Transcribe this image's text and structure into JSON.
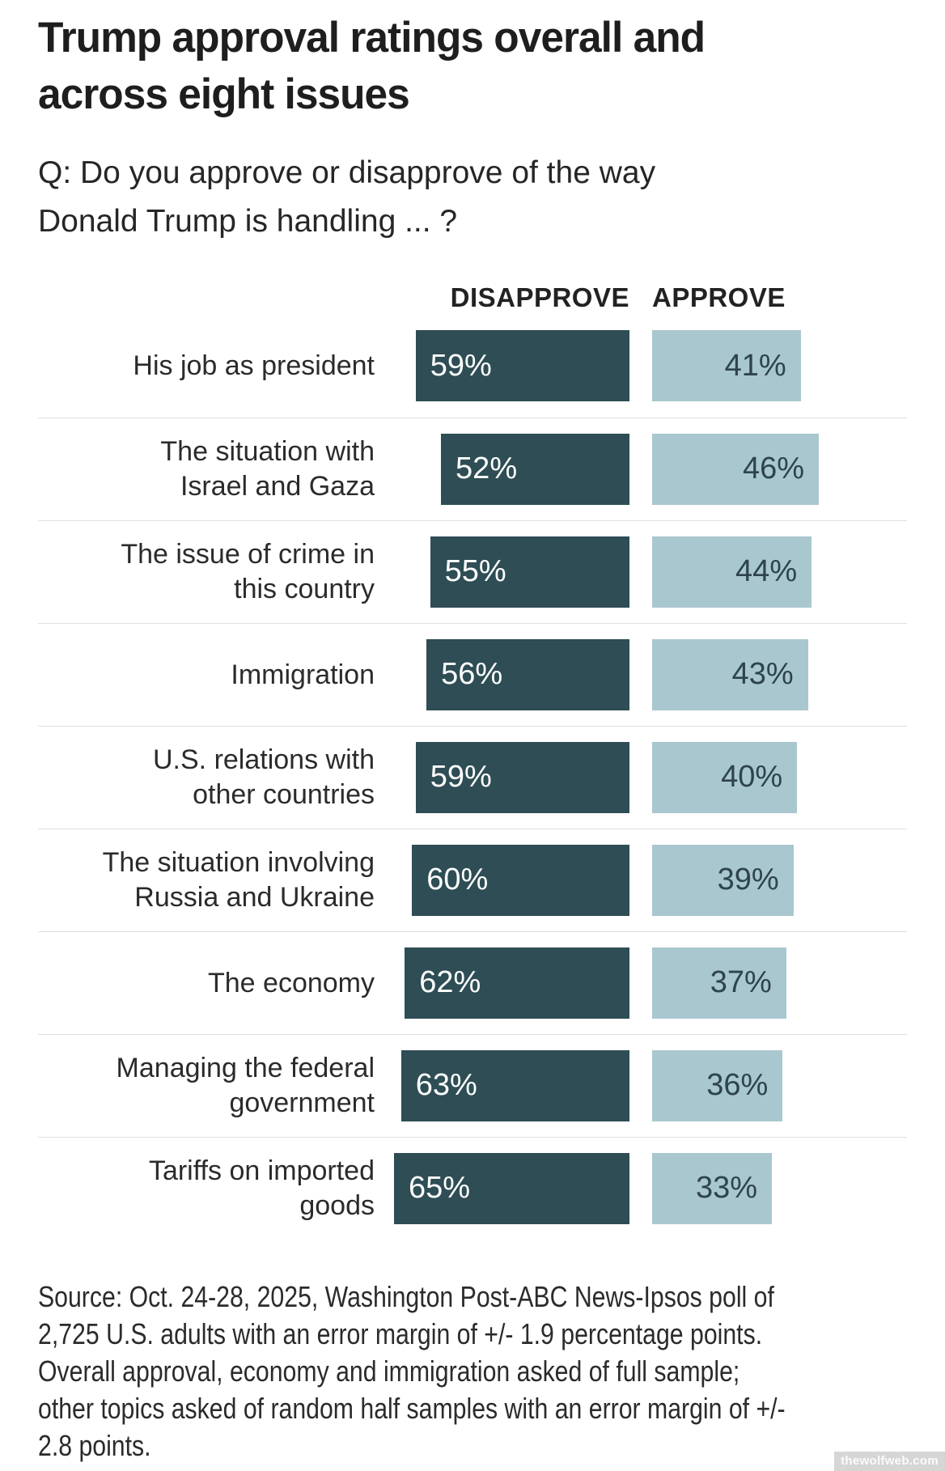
{
  "title_lines": [
    "Trump approval ratings overall and",
    "across eight issues"
  ],
  "question_lines": [
    "Q: Do you approve or disapprove of the way",
    "Donald Trump is handling ... ?"
  ],
  "columns": {
    "disapprove": "DISAPPROVE",
    "approve": "APPROVE"
  },
  "rows": [
    {
      "label_lines": [
        "His job as president"
      ],
      "disapprove": {
        "value": 59,
        "label": "59%"
      },
      "approve": {
        "value": 41,
        "label": "41%"
      }
    },
    {
      "label_lines": [
        "The situation with",
        "Israel and Gaza"
      ],
      "disapprove": {
        "value": 52,
        "label": "52%"
      },
      "approve": {
        "value": 46,
        "label": "46%"
      }
    },
    {
      "label_lines": [
        "The issue of crime in",
        "this country"
      ],
      "disapprove": {
        "value": 55,
        "label": "55%"
      },
      "approve": {
        "value": 44,
        "label": "44%"
      }
    },
    {
      "label_lines": [
        "Immigration"
      ],
      "disapprove": {
        "value": 56,
        "label": "56%"
      },
      "approve": {
        "value": 43,
        "label": "43%"
      }
    },
    {
      "label_lines": [
        "U.S. relations with",
        "other countries"
      ],
      "disapprove": {
        "value": 59,
        "label": "59%"
      },
      "approve": {
        "value": 40,
        "label": "40%"
      }
    },
    {
      "label_lines": [
        "The situation involving",
        "Russia and Ukraine"
      ],
      "disapprove": {
        "value": 60,
        "label": "60%"
      },
      "approve": {
        "value": 39,
        "label": "39%"
      }
    },
    {
      "label_lines": [
        "The economy"
      ],
      "disapprove": {
        "value": 62,
        "label": "62%"
      },
      "approve": {
        "value": 37,
        "label": "37%"
      }
    },
    {
      "label_lines": [
        "Managing the federal",
        "government"
      ],
      "disapprove": {
        "value": 63,
        "label": "63%"
      },
      "approve": {
        "value": 36,
        "label": "36%"
      }
    },
    {
      "label_lines": [
        "Tariffs on imported",
        "goods"
      ],
      "disapprove": {
        "value": 65,
        "label": "65%"
      },
      "approve": {
        "value": 33,
        "label": "33%"
      }
    }
  ],
  "source_lines": [
    "Source: Oct. 24-28, 2025, Washington Post-ABC News-Ipsos poll of",
    "2,725 U.S. adults with an error margin of +/- 1.9 percentage points.",
    "Overall approval, economy and immigration asked of full sample;",
    "other topics asked of random half samples with an error margin of +/-",
    "2.8 points."
  ],
  "watermark": "thewolfweb.com",
  "colors": {
    "disapprove_bar": "#2e4d54",
    "approve_bar": "#a9c7cf",
    "disapprove_value_text": "#ffffff",
    "approve_value_text": "#2e444b",
    "divider": "#dfdfdf"
  },
  "chart_data": {
    "type": "bar",
    "orientation": "horizontal",
    "title": "Trump approval ratings overall and across eight issues",
    "subtitle": "Q: Do you approve or disapprove of the way Donald Trump is handling ... ?",
    "categories": [
      "His job as president",
      "The situation with Israel and Gaza",
      "The issue of crime in this country",
      "Immigration",
      "U.S. relations with other countries",
      "The situation involving Russia and Ukraine",
      "The economy",
      "Managing the federal government",
      "Tariffs on imported goods"
    ],
    "series": [
      {
        "name": "DISAPPROVE",
        "color": "#2e4d54",
        "values": [
          59,
          52,
          55,
          56,
          59,
          60,
          62,
          63,
          65
        ]
      },
      {
        "name": "APPROVE",
        "color": "#a9c7cf",
        "values": [
          41,
          46,
          44,
          43,
          40,
          39,
          37,
          36,
          33
        ]
      }
    ],
    "value_unit": "%",
    "xlim": [
      0,
      65
    ],
    "grid": false,
    "legend_position": "top",
    "data_labels": true,
    "annotation": "Source: Oct. 24-28, 2025, Washington Post-ABC News-Ipsos poll of 2,725 U.S. adults with an error margin of +/- 1.9 percentage points. Overall approval, economy and immigration asked of full sample; other topics asked of random half samples with an error margin of +/- 2.8 points."
  }
}
